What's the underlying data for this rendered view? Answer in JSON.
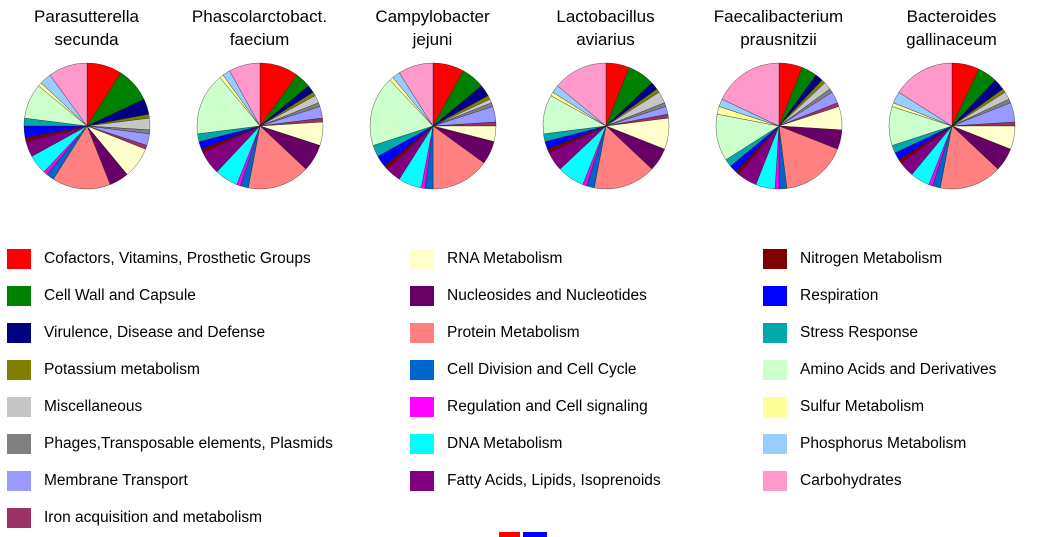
{
  "legend": {
    "columns": [
      {
        "items": [
          {
            "label": "Cofactors, Vitamins, Prosthetic Groups",
            "color": "#FF0000"
          },
          {
            "label": "Cell Wall and Capsule",
            "color": "#008000"
          },
          {
            "label": "Virulence, Disease and Defense",
            "color": "#000080"
          },
          {
            "label": "Potassium metabolism",
            "color": "#808000"
          },
          {
            "label": "Miscellaneous",
            "color": "#C6C6C6"
          },
          {
            "label": "Phages,Transposable elements, Plasmids",
            "color": "#808080"
          },
          {
            "label": "Membrane Transport",
            "color": "#9999FF"
          },
          {
            "label": "Iron acquisition and metabolism",
            "color": "#993366"
          }
        ]
      },
      {
        "items": [
          {
            "label": "RNA Metabolism",
            "color": "#FFFFCC"
          },
          {
            "label": "Nucleosides and Nucleotides",
            "color": "#660066"
          },
          {
            "label": "Protein Metabolism",
            "color": "#FF8080"
          },
          {
            "label": "Cell Division and Cell Cycle",
            "color": "#0066CC"
          },
          {
            "label": "Regulation and Cell signaling",
            "color": "#FF00FF"
          },
          {
            "label": "DNA Metabolism",
            "color": "#00FFFF"
          },
          {
            "label": "Fatty Acids, Lipids, Isoprenoids",
            "color": "#800080"
          }
        ]
      },
      {
        "items": [
          {
            "label": "Nitrogen Metabolism",
            "color": "#800000"
          },
          {
            "label": "Respiration",
            "color": "#0000FF"
          },
          {
            "label": "Stress Response",
            "color": "#00AAAA"
          },
          {
            "label": "Amino Acids and Derivatives",
            "color": "#CCFFCC"
          },
          {
            "label": "Sulfur Metabolism",
            "color": "#FFFF99"
          },
          {
            "label": "Phosphorus Metabolism",
            "color": "#99CCFF"
          },
          {
            "label": "Carbohydrates",
            "color": "#FF99CC"
          }
        ]
      }
    ]
  },
  "cropped_bottom_swatches": [
    {
      "name": "red",
      "color": "#FF0000"
    },
    {
      "name": "blue",
      "color": "#0000FF"
    }
  ],
  "chart_data": {
    "type": "pie",
    "note": "Six pie charts sharing one category/color set; values are percent of annotated genes (estimated from slice angles).",
    "categories": [
      "Cofactors, Vitamins, Prosthetic Groups",
      "Cell Wall and Capsule",
      "Virulence, Disease and Defense",
      "Potassium metabolism",
      "Miscellaneous",
      "Phages,Transposable elements, Plasmids",
      "Membrane Transport",
      "Iron acquisition and metabolism",
      "RNA Metabolism",
      "Nucleosides and Nucleotides",
      "Protein Metabolism",
      "Cell Division and Cell Cycle",
      "Regulation and Cell signaling",
      "DNA Metabolism",
      "Fatty Acids, Lipids, Isoprenoids",
      "Nitrogen Metabolism",
      "Respiration",
      "Stress Response",
      "Amino Acids and Derivatives",
      "Sulfur Metabolism",
      "Phosphorus Metabolism",
      "Carbohydrates"
    ],
    "colors": [
      "#FF0000",
      "#008000",
      "#000080",
      "#808000",
      "#C6C6C6",
      "#808080",
      "#9999FF",
      "#993366",
      "#FFFFCC",
      "#660066",
      "#FF8080",
      "#0066CC",
      "#FF00FF",
      "#00FFFF",
      "#800080",
      "#800000",
      "#0000FF",
      "#00AAAA",
      "#CCFFCC",
      "#FFFF99",
      "#99CCFF",
      "#FF99CC"
    ],
    "charts": [
      {
        "title_line1": "Parasutterella",
        "title_line2": "secunda",
        "values": [
          9,
          9,
          4,
          1,
          3,
          1,
          3,
          1,
          8,
          5,
          15,
          2,
          1,
          5,
          4,
          1,
          3,
          2,
          9,
          1,
          3,
          10
        ]
      },
      {
        "title_line1": "Phascolarctobact.",
        "title_line2": "faecium",
        "values": [
          10,
          4,
          2,
          1,
          2,
          1,
          3,
          1,
          6,
          7,
          16,
          2,
          1,
          6,
          6,
          1,
          2,
          2,
          16,
          1,
          2,
          8
        ]
      },
      {
        "title_line1": "Campylobacter",
        "title_line2": "jejuni",
        "values": [
          8,
          6,
          3,
          1,
          1,
          1,
          4,
          1,
          4,
          6,
          15,
          2,
          1,
          6,
          4,
          1,
          3,
          3,
          18,
          1,
          2,
          9
        ]
      },
      {
        "title_line1": "Lactobacillus",
        "title_line2": "aviarius",
        "values": [
          6,
          7,
          2,
          1,
          3,
          1,
          2,
          1,
          8,
          6,
          16,
          2,
          1,
          7,
          5,
          1,
          2,
          2,
          10,
          1,
          2,
          14
        ]
      },
      {
        "title_line1": "Faecalibacterium",
        "title_line2": "prausnitzii",
        "values": [
          6,
          4,
          2,
          1,
          2,
          1,
          3,
          1,
          6,
          5,
          17,
          2,
          1,
          5,
          5,
          1,
          2,
          2,
          12,
          2,
          2,
          18
        ]
      },
      {
        "title_line1": "Bacteroides",
        "title_line2": "gallinaceum",
        "values": [
          7,
          5,
          3,
          1,
          2,
          1,
          5,
          1,
          6,
          6,
          16,
          2,
          1,
          5,
          4,
          1,
          2,
          2,
          10,
          1,
          3,
          16
        ]
      }
    ]
  }
}
